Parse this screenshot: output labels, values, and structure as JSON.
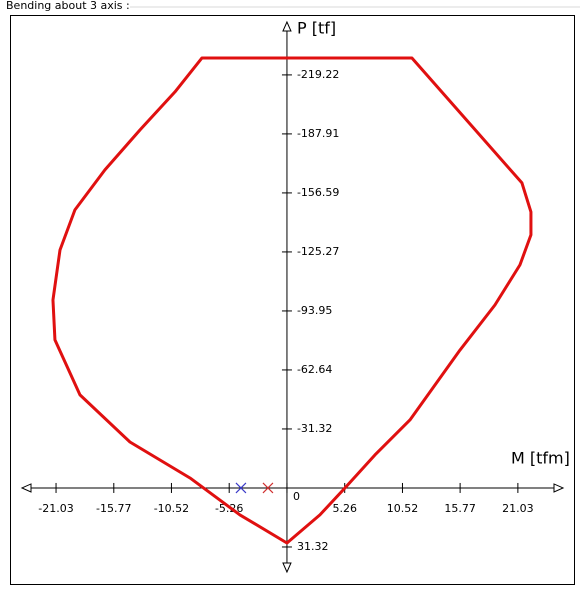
{
  "chart_data": {
    "type": "line",
    "group_title": "Bending about 3 axis :",
    "x_label": "M [tfm]",
    "y_label": "P [tf]",
    "xlim": [
      -24.13,
      25.14
    ],
    "ylim": [
      44.6,
      -247.3
    ],
    "xticks": [
      -21.03,
      -15.77,
      -10.52,
      -5.26,
      0,
      5.26,
      10.52,
      15.77,
      21.03
    ],
    "yticks": [
      31.32,
      0,
      -31.32,
      -62.64,
      -93.95,
      -125.27,
      -156.59,
      -187.91,
      -219.22
    ],
    "series": [
      {
        "color": "#e01010",
        "x": [
          -7.74,
          11.38,
          21.4,
          22.22,
          22.22,
          21.22,
          18.94,
          15.76,
          11.2,
          8.01,
          5.28,
          3.0,
          0,
          -4.28,
          -8.83,
          -14.3,
          -18.85,
          -21.13,
          -21.31,
          -20.67,
          -19.31,
          -16.58,
          -13.39,
          -10.2
        ],
        "values": [
          -228.2,
          -228.2,
          -161.9,
          -146.5,
          -134.3,
          -118.4,
          -97.1,
          -73.2,
          -36.1,
          -17.5,
          0,
          14.3,
          29.2,
          14.3,
          -5.3,
          -24.4,
          -49.4,
          -78.6,
          -99.8,
          -126.3,
          -147.6,
          -168.8,
          -190.0,
          -210.2
        ]
      }
    ],
    "markers": [
      {
        "x": -4.19,
        "y": 0,
        "color": "#3a3ac8"
      },
      {
        "x": -1.73,
        "y": 0,
        "color": "#d03030"
      }
    ]
  }
}
